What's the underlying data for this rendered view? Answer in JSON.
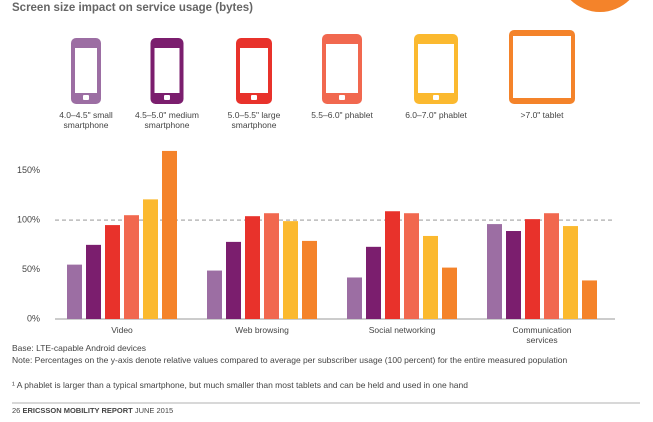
{
  "chart_data": {
    "type": "bar",
    "title": "Screen size impact on service usage (bytes)",
    "categories": [
      "Video",
      "Web browsing",
      "Social networking",
      "Communication services"
    ],
    "series": [
      {
        "name": "4.0–4.5\" small smartphone",
        "color": "#9c6ea3",
        "values": [
          55,
          49,
          42,
          96
        ]
      },
      {
        "name": "4.5–5.0\" medium smartphone",
        "color": "#7b1e6e",
        "values": [
          75,
          78,
          73,
          89
        ]
      },
      {
        "name": "5.0–5.5\" large smartphone",
        "color": "#e8322b",
        "values": [
          95,
          104,
          109,
          101
        ]
      },
      {
        "name": "5.5–6.0\" phablet",
        "color": "#f1684f",
        "values": [
          105,
          107,
          107,
          107
        ]
      },
      {
        "name": "6.0–7.0\" phablet",
        "color": "#fbb92f",
        "values": [
          121,
          99,
          84,
          94
        ]
      },
      {
        "name": ">7.0\" tablet",
        "color": "#f4832a",
        "values": [
          170,
          79,
          52,
          39
        ]
      }
    ],
    "ylim": [
      0,
      176
    ],
    "yticks": [
      {
        "value": 0,
        "label": "0%"
      },
      {
        "value": 50,
        "label": "50%"
      },
      {
        "value": 100,
        "label": "100%"
      },
      {
        "value": 150,
        "label": "150%"
      }
    ],
    "reference_line": 100,
    "notes": [
      "Base: LTE-capable Android devices",
      "Note: Percentages on the y-axis denote relative values compared to average per subscriber usage (100 percent) for the entire measured population"
    ],
    "footnote": "¹ A phablet is larger than a typical smartphone, but much smaller than most tablets and can be held and used in one hand",
    "footer": {
      "page": "26",
      "report": "ERICSSON MOBILITY REPORT",
      "date": "JUNE 2015"
    }
  }
}
